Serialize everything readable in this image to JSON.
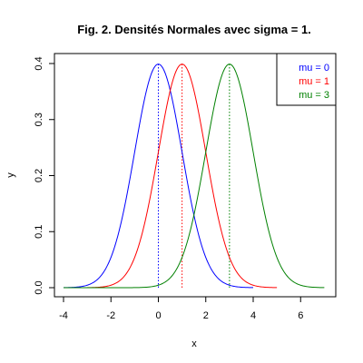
{
  "chart_data": {
    "type": "line",
    "title": "Fig. 2. Densités Normales avec sigma = 1.",
    "xlabel": "x",
    "ylabel": "y",
    "xlim": [
      -4,
      7
    ],
    "ylim": [
      0,
      0.4
    ],
    "x_ticks": [
      -4,
      -2,
      0,
      2,
      4,
      6
    ],
    "y_ticks": [
      0.0,
      0.1,
      0.2,
      0.3,
      0.4
    ],
    "x_tick_labels": [
      "-4",
      "-2",
      "0",
      "2",
      "4",
      "6"
    ],
    "y_tick_labels": [
      "0.0",
      "0.1",
      "0.2",
      "0.3",
      "0.4"
    ],
    "grid": false,
    "legend_position": "top-right",
    "series": [
      {
        "name": "mu = 0",
        "mu": 0,
        "sigma": 1,
        "color": "#0000ff",
        "x_range": [
          -4,
          4
        ]
      },
      {
        "name": "mu = 1",
        "mu": 1,
        "sigma": 1,
        "color": "#ff0000",
        "x_range": [
          -3,
          5
        ]
      },
      {
        "name": "mu = 3",
        "mu": 3,
        "sigma": 1,
        "color": "#008000",
        "x_range": [
          -4,
          7
        ]
      }
    ],
    "annotations": [
      {
        "type": "dotted-vline",
        "x": 0,
        "y_top": 0.3989,
        "color": "#0000ff"
      },
      {
        "type": "dotted-vline",
        "x": 1,
        "y_top": 0.3989,
        "color": "#ff0000"
      },
      {
        "type": "dotted-vline",
        "x": 3,
        "y_top": 0.3989,
        "color": "#008000"
      }
    ]
  }
}
